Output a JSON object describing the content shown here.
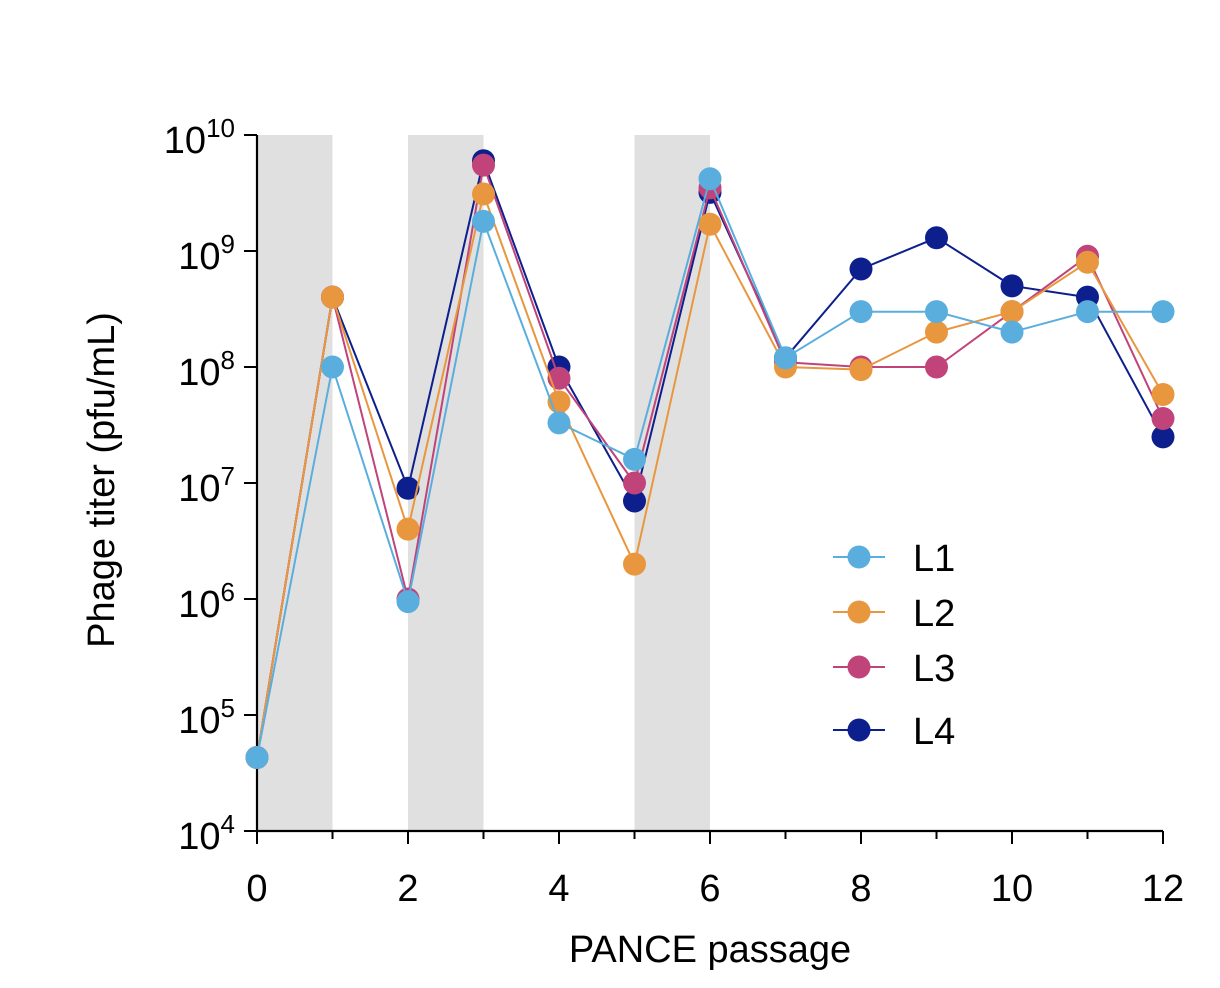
{
  "chart_data": {
    "type": "line",
    "xlabel": "PANCE passage",
    "ylabel": "Phage titer (pfu/mL)",
    "yscale": "log",
    "xlim": [
      0,
      12
    ],
    "ylim": [
      10000,
      10000000000
    ],
    "x_ticks": [
      "0",
      "2",
      "4",
      "6",
      "8",
      "10",
      "12"
    ],
    "y_tick_base": "10",
    "y_tick_exponents": [
      "4",
      "5",
      "6",
      "7",
      "8",
      "9",
      "10"
    ],
    "shaded_intervals": [
      [
        0,
        1
      ],
      [
        2,
        3
      ],
      [
        5,
        6
      ]
    ],
    "shade_color": "#e0e0e0",
    "legend_position": "center-right",
    "series": [
      {
        "name": "L1",
        "color": "#5aaedd",
        "x": [
          0,
          1,
          2,
          3,
          4,
          5,
          6,
          7,
          8,
          9,
          10,
          11,
          12
        ],
        "y": [
          43000,
          100000000,
          950000,
          1800000000,
          33000000,
          16000000,
          4200000000,
          120000000,
          300000000,
          300000000,
          200000000,
          300000000,
          300000000
        ]
      },
      {
        "name": "L2",
        "color": "#e8973f",
        "x": [
          0,
          1,
          2,
          3,
          4,
          5,
          6,
          7,
          8,
          9,
          10,
          11,
          12
        ],
        "y": [
          43000,
          400000000,
          4000000,
          3100000000,
          50000000,
          2000000,
          1700000000,
          100000000,
          95000000,
          200000000,
          300000000,
          800000000,
          58000000
        ]
      },
      {
        "name": "L3",
        "color": "#c0437a",
        "x": [
          0,
          1,
          2,
          3,
          4,
          5,
          6,
          7,
          8,
          9,
          10,
          11,
          12
        ],
        "y": [
          43000,
          400000000,
          1000000,
          5500000000,
          80000000,
          10000000,
          3500000000,
          110000000,
          100000000,
          100000000,
          300000000,
          900000000,
          36000000
        ]
      },
      {
        "name": "L4",
        "color": "#0d1f8c",
        "x": [
          0,
          1,
          2,
          3,
          4,
          5,
          6,
          7,
          8,
          9,
          10,
          11,
          12
        ],
        "y": [
          43000,
          400000000,
          9000000,
          6000000000,
          100000000,
          7000000,
          3200000000,
          120000000,
          700000000,
          1300000000,
          500000000,
          400000000,
          25000000
        ]
      }
    ]
  }
}
